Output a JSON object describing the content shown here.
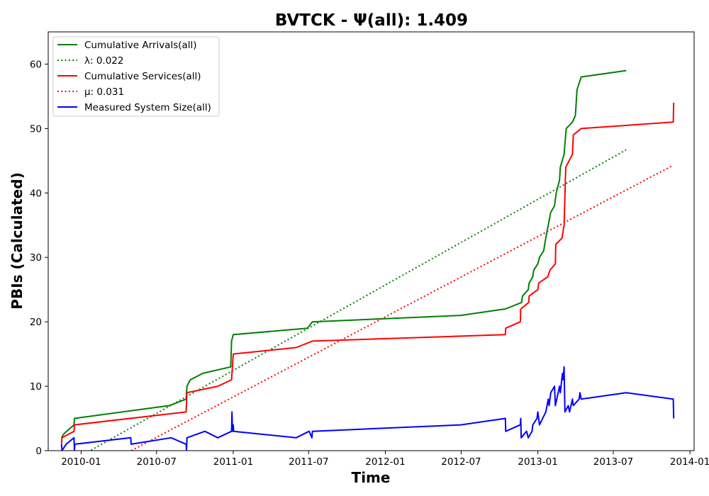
{
  "chart_data": {
    "type": "line",
    "title": "BVTCK -  Ψ(all): 1.409",
    "xlabel": "Time",
    "ylabel": "PBIs (Calculated)",
    "x_ticks": [
      "2010-01",
      "2010-07",
      "2011-01",
      "2011-07",
      "2012-01",
      "2012-07",
      "2013-01",
      "2013-07",
      "2014-01"
    ],
    "y_ticks": [
      "0",
      "10",
      "20",
      "30",
      "40",
      "50",
      "60"
    ],
    "xlim": [
      "2009-10-14",
      "2014-01-11"
    ],
    "ylim": [
      0,
      65
    ],
    "grid": false,
    "legend_position": "top-left",
    "series": [
      {
        "name": "Cumulative Arrivals(all)",
        "color": "#008000",
        "style": "solid",
        "points": [
          [
            "2009-11-15",
            2
          ],
          [
            "2009-11-19",
            2.5
          ],
          [
            "2009-11-27",
            3
          ],
          [
            "2009-12-15",
            4
          ],
          [
            "2009-12-16",
            5
          ],
          [
            "2010-08-01",
            7
          ],
          [
            "2010-09-10",
            8
          ],
          [
            "2010-09-12",
            10
          ],
          [
            "2010-09-20",
            11
          ],
          [
            "2010-10-20",
            12
          ],
          [
            "2010-12-26",
            13
          ],
          [
            "2010-12-28",
            17
          ],
          [
            "2011-01-01",
            18
          ],
          [
            "2011-06-28",
            19
          ],
          [
            "2011-07-10",
            20
          ],
          [
            "2012-06-30",
            21
          ],
          [
            "2012-10-15",
            22
          ],
          [
            "2012-11-23",
            23
          ],
          [
            "2012-11-25",
            24
          ],
          [
            "2012-12-09",
            25
          ],
          [
            "2012-12-11",
            26
          ],
          [
            "2012-12-20",
            27
          ],
          [
            "2012-12-22",
            28
          ],
          [
            "2013-01-01",
            29
          ],
          [
            "2013-01-05",
            30
          ],
          [
            "2013-01-15",
            31
          ],
          [
            "2013-01-20",
            33
          ],
          [
            "2013-01-26",
            35
          ],
          [
            "2013-02-01",
            37
          ],
          [
            "2013-02-10",
            38
          ],
          [
            "2013-02-14",
            40
          ],
          [
            "2013-02-22",
            42
          ],
          [
            "2013-02-24",
            44
          ],
          [
            "2013-03-05",
            46
          ],
          [
            "2013-03-10",
            50
          ],
          [
            "2013-03-25",
            51
          ],
          [
            "2013-04-01",
            52
          ],
          [
            "2013-04-03",
            54
          ],
          [
            "2013-04-05",
            56
          ],
          [
            "2013-04-10",
            57
          ],
          [
            "2013-04-15",
            58
          ],
          [
            "2013-08-01",
            59
          ]
        ]
      },
      {
        "name": "λ: 0.022",
        "color": "#008000",
        "style": "dotted",
        "points": [
          [
            "2009-11-15",
            -2.5
          ],
          [
            "2013-08-01",
            46.7
          ]
        ]
      },
      {
        "name": "Cumulative Services(all)",
        "color": "#ff0000",
        "style": "solid",
        "points": [
          [
            "2009-11-15",
            1
          ],
          [
            "2009-11-16",
            2
          ],
          [
            "2009-12-15",
            3
          ],
          [
            "2009-12-16",
            4
          ],
          [
            "2010-09-10",
            6
          ],
          [
            "2010-09-12",
            9
          ],
          [
            "2010-11-25",
            10
          ],
          [
            "2010-12-28",
            11
          ],
          [
            "2011-01-01",
            15
          ],
          [
            "2011-06-01",
            16
          ],
          [
            "2011-07-10",
            17
          ],
          [
            "2012-10-15",
            18
          ],
          [
            "2012-10-16",
            19
          ],
          [
            "2012-11-20",
            20
          ],
          [
            "2012-11-21",
            22
          ],
          [
            "2012-12-10",
            23
          ],
          [
            "2012-12-11",
            24
          ],
          [
            "2013-01-01",
            25
          ],
          [
            "2013-01-03",
            26
          ],
          [
            "2013-01-25",
            27
          ],
          [
            "2013-01-30",
            28
          ],
          [
            "2013-02-12",
            29
          ],
          [
            "2013-02-13",
            32
          ],
          [
            "2013-02-28",
            33
          ],
          [
            "2013-03-05",
            35
          ],
          [
            "2013-03-08",
            42
          ],
          [
            "2013-03-09",
            44
          ],
          [
            "2013-03-25",
            46
          ],
          [
            "2013-03-27",
            49
          ],
          [
            "2013-04-15",
            50
          ],
          [
            "2013-11-22",
            51
          ],
          [
            "2013-11-23",
            54
          ]
        ]
      },
      {
        "name": "μ: 0.031",
        "color": "#ff0000",
        "style": "dotted",
        "points": [
          [
            "2009-11-15",
            -5.7
          ],
          [
            "2013-11-22",
            44.3
          ]
        ]
      },
      {
        "name": "Measured System Size(all)",
        "color": "#0000ff",
        "style": "solid",
        "points": [
          [
            "2009-11-15",
            1
          ],
          [
            "2009-11-16",
            0
          ],
          [
            "2009-11-26",
            1
          ],
          [
            "2009-12-15",
            2
          ],
          [
            "2009-12-16",
            0
          ],
          [
            "2009-12-17",
            1
          ],
          [
            "2010-04-30",
            2
          ],
          [
            "2010-05-01",
            1
          ],
          [
            "2010-08-05",
            2
          ],
          [
            "2010-09-10",
            1
          ],
          [
            "2010-09-11",
            0
          ],
          [
            "2010-09-12",
            2
          ],
          [
            "2010-10-25",
            3
          ],
          [
            "2010-11-25",
            2
          ],
          [
            "2010-12-28",
            3
          ],
          [
            "2010-12-29",
            6
          ],
          [
            "2010-12-30",
            3
          ],
          [
            "2011-01-01",
            4
          ],
          [
            "2011-01-02",
            3
          ],
          [
            "2011-06-01",
            2
          ],
          [
            "2011-07-02",
            3
          ],
          [
            "2011-07-09",
            2
          ],
          [
            "2011-07-10",
            3
          ],
          [
            "2012-06-30",
            4
          ],
          [
            "2012-10-15",
            5
          ],
          [
            "2012-10-16",
            3
          ],
          [
            "2012-11-20",
            4
          ],
          [
            "2012-11-21",
            5
          ],
          [
            "2012-11-22",
            2
          ],
          [
            "2012-12-05",
            3
          ],
          [
            "2012-12-09",
            2
          ],
          [
            "2012-12-18",
            3
          ],
          [
            "2012-12-20",
            4
          ],
          [
            "2012-12-30",
            5
          ],
          [
            "2013-01-01",
            6
          ],
          [
            "2013-01-05",
            4
          ],
          [
            "2013-01-20",
            6
          ],
          [
            "2013-01-26",
            8
          ],
          [
            "2013-01-28",
            7
          ],
          [
            "2013-02-01",
            9
          ],
          [
            "2013-02-10",
            10
          ],
          [
            "2013-02-12",
            7
          ],
          [
            "2013-02-22",
            10
          ],
          [
            "2013-02-24",
            9
          ],
          [
            "2013-03-01",
            12
          ],
          [
            "2013-03-03",
            11
          ],
          [
            "2013-03-05",
            13
          ],
          [
            "2013-03-07",
            6
          ],
          [
            "2013-03-15",
            7
          ],
          [
            "2013-03-18",
            6
          ],
          [
            "2013-03-25",
            8
          ],
          [
            "2013-03-27",
            7
          ],
          [
            "2013-04-10",
            8
          ],
          [
            "2013-04-12",
            9
          ],
          [
            "2013-04-15",
            8
          ],
          [
            "2013-08-01",
            9
          ],
          [
            "2013-11-22",
            8
          ],
          [
            "2013-11-23",
            5
          ]
        ]
      }
    ]
  }
}
